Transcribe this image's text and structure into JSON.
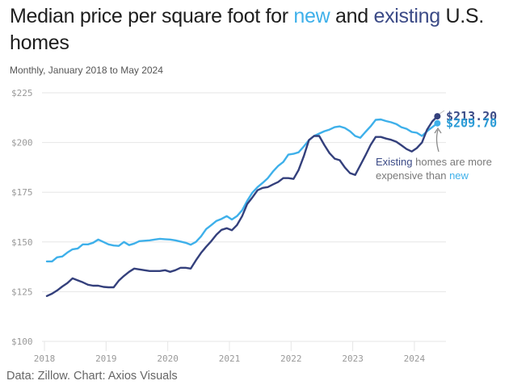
{
  "header": {
    "title_part1": "Median price per square foot for ",
    "title_new": "new",
    "title_part2": " and ",
    "title_existing": "existing",
    "title_part3": " U.S. homes",
    "subtitle": "Monthly, January 2018 to May 2024"
  },
  "footer": {
    "source": "Data: Zillow. Chart: Axios Visuals"
  },
  "annotation": {
    "word_existing": "Existing",
    "text_middle": " homes are more expensive than ",
    "word_new": "new"
  },
  "colors": {
    "new": "#3eb0ea",
    "existing": "#34407c",
    "grid": "#e6e6e6",
    "tick_text": "#999999"
  },
  "chart_data": {
    "type": "line",
    "title": "Median price per square foot for new and existing U.S. homes",
    "subtitle": "Monthly, January 2018 to May 2024",
    "xlabel": "",
    "ylabel": "",
    "x_start": "2018-01",
    "x_end": "2024-05",
    "x_ticks": [
      "2018",
      "2019",
      "2020",
      "2021",
      "2022",
      "2023",
      "2024"
    ],
    "y_ticks": [
      100,
      125,
      150,
      175,
      200,
      225
    ],
    "y_tick_labels": [
      "$100",
      "$125",
      "$150",
      "$175",
      "$200",
      "$225"
    ],
    "ylim": [
      100,
      225
    ],
    "grid": true,
    "legend": "inline title coloring",
    "series": [
      {
        "name": "Existing",
        "end_label": "$213.20",
        "values": [
          122.8,
          124.0,
          125.6,
          127.6,
          129.3,
          131.7,
          130.7,
          129.7,
          128.5,
          128.0,
          128.0,
          127.4,
          127.2,
          127.2,
          130.5,
          132.9,
          135.0,
          136.6,
          136.2,
          135.8,
          135.4,
          135.4,
          135.4,
          135.8,
          135.0,
          135.8,
          137.0,
          137.0,
          136.6,
          140.7,
          144.5,
          147.6,
          150.4,
          153.7,
          156.1,
          156.9,
          155.9,
          158.5,
          163.0,
          169.1,
          172.4,
          176.0,
          177.2,
          177.6,
          178.9,
          180.1,
          182.1,
          182.1,
          181.7,
          186.2,
          193.1,
          201.2,
          203.3,
          203.3,
          198.8,
          194.7,
          191.9,
          191.1,
          187.4,
          184.6,
          183.7,
          188.6,
          193.5,
          198.8,
          202.8,
          202.8,
          202.0,
          201.4,
          200.4,
          198.6,
          196.7,
          195.5,
          197.2,
          200.0,
          206.5,
          210.6,
          213.2
        ]
      },
      {
        "name": "New",
        "end_label": "$209.70",
        "values": [
          140.2,
          140.2,
          142.3,
          142.7,
          144.7,
          146.3,
          146.7,
          148.8,
          148.8,
          149.6,
          151.2,
          150.0,
          148.8,
          148.2,
          148.0,
          150.0,
          148.4,
          149.2,
          150.4,
          150.6,
          150.8,
          151.2,
          151.6,
          151.4,
          151.2,
          150.8,
          150.2,
          149.6,
          148.6,
          150.0,
          152.8,
          156.5,
          158.5,
          160.6,
          161.6,
          163.0,
          161.3,
          163.0,
          165.9,
          170.7,
          174.8,
          177.6,
          179.7,
          182.1,
          185.4,
          188.2,
          190.2,
          193.9,
          194.3,
          195.1,
          198.0,
          201.2,
          203.3,
          204.5,
          205.7,
          206.5,
          207.7,
          208.1,
          207.3,
          205.7,
          203.3,
          202.4,
          205.3,
          208.1,
          211.4,
          211.6,
          210.8,
          210.2,
          209.3,
          207.7,
          206.9,
          205.3,
          204.9,
          203.3,
          205.7,
          207.7,
          209.7
        ]
      }
    ],
    "annotations": [
      "Existing homes are more expensive than new"
    ]
  }
}
